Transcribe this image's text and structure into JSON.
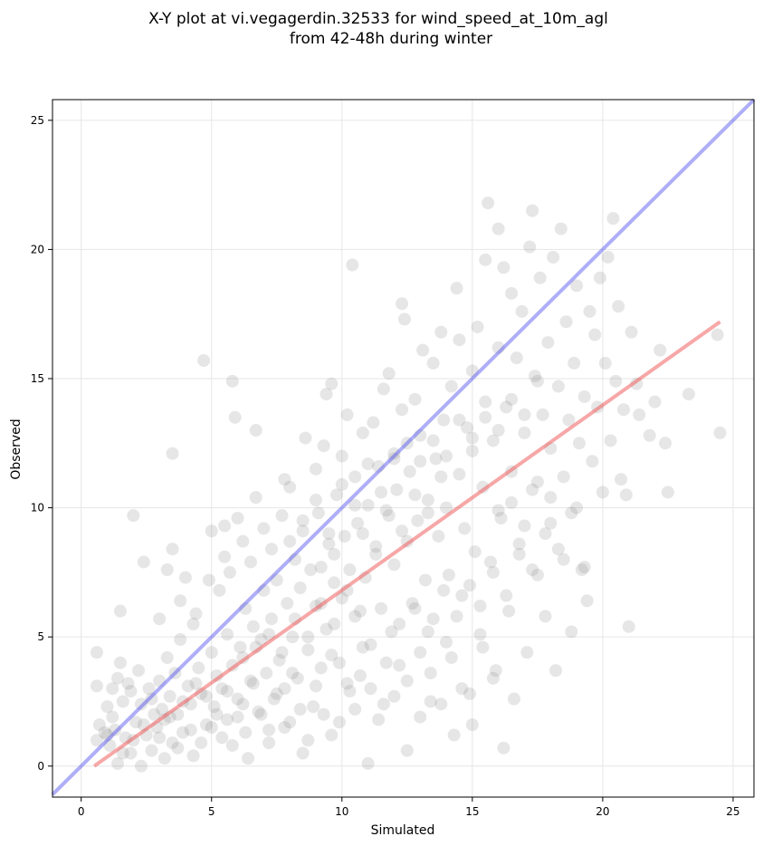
{
  "chart_data": {
    "type": "scatter",
    "title_lines": [
      "X-Y plot at vi.vegagerdin.32533 for wind_speed_at_10m_agl",
      "from 42-48h during winter"
    ],
    "xlabel": "Simulated",
    "ylabel": "Observed",
    "xlim": [
      -1.1,
      25.8
    ],
    "ylim": [
      -1.2,
      25.8
    ],
    "x_ticks": [
      0,
      5,
      10,
      15,
      20,
      25
    ],
    "y_ticks": [
      0,
      5,
      10,
      15,
      20,
      25
    ],
    "grid": true,
    "point_color": "#808080",
    "identity_line": {
      "x": [
        -1.1,
        25.8
      ],
      "y": [
        -1.1,
        25.8
      ],
      "color": "#4c4cf0"
    },
    "fit_line": {
      "x": [
        0.5,
        24.5
      ],
      "y": [
        0.0,
        17.2
      ],
      "color": "#f05050"
    },
    "points": [
      [
        0.6,
        1.0
      ],
      [
        0.6,
        4.4
      ],
      [
        0.6,
        3.1
      ],
      [
        0.7,
        1.6
      ],
      [
        0.9,
        1.3
      ],
      [
        1.0,
        2.3
      ],
      [
        1.1,
        0.8
      ],
      [
        1.2,
        1.9
      ],
      [
        1.2,
        3.0
      ],
      [
        1.3,
        1.4
      ],
      [
        1.4,
        0.1
      ],
      [
        1.4,
        3.4
      ],
      [
        1.5,
        4.0
      ],
      [
        1.5,
        6.0
      ],
      [
        1.6,
        2.5
      ],
      [
        1.7,
        1.1
      ],
      [
        1.8,
        3.2
      ],
      [
        1.9,
        0.5
      ],
      [
        1.9,
        2.9
      ],
      [
        2.0,
        9.7
      ],
      [
        2.1,
        1.7
      ],
      [
        2.2,
        3.7
      ],
      [
        2.3,
        0.0
      ],
      [
        2.3,
        2.4
      ],
      [
        2.4,
        7.9
      ],
      [
        2.5,
        1.2
      ],
      [
        2.6,
        3.0
      ],
      [
        2.7,
        0.6
      ],
      [
        2.8,
        2.0
      ],
      [
        2.9,
        1.5
      ],
      [
        3.0,
        5.7
      ],
      [
        3.0,
        3.3
      ],
      [
        3.1,
        2.2
      ],
      [
        3.2,
        1.8
      ],
      [
        3.3,
        4.2
      ],
      [
        3.3,
        7.6
      ],
      [
        3.4,
        2.7
      ],
      [
        3.5,
        0.9
      ],
      [
        3.5,
        12.1
      ],
      [
        3.5,
        8.4
      ],
      [
        3.6,
        3.6
      ],
      [
        3.7,
        2.0
      ],
      [
        3.8,
        6.4
      ],
      [
        3.8,
        4.9
      ],
      [
        3.9,
        1.3
      ],
      [
        4.0,
        7.3
      ],
      [
        4.1,
        3.1
      ],
      [
        4.2,
        2.4
      ],
      [
        4.3,
        5.5
      ],
      [
        4.3,
        0.4
      ],
      [
        4.4,
        5.9
      ],
      [
        4.5,
        3.8
      ],
      [
        4.6,
        2.8
      ],
      [
        4.7,
        15.7
      ],
      [
        4.8,
        1.6
      ],
      [
        4.9,
        7.2
      ],
      [
        5.0,
        4.4
      ],
      [
        5.0,
        9.1
      ],
      [
        5.1,
        2.3
      ],
      [
        5.2,
        3.5
      ],
      [
        5.3,
        6.8
      ],
      [
        5.4,
        1.1
      ],
      [
        5.5,
        9.3
      ],
      [
        5.5,
        8.1
      ],
      [
        5.6,
        2.9
      ],
      [
        5.6,
        5.1
      ],
      [
        5.7,
        7.5
      ],
      [
        5.8,
        3.9
      ],
      [
        5.8,
        14.9
      ],
      [
        5.9,
        13.5
      ],
      [
        6.0,
        1.9
      ],
      [
        6.0,
        9.6
      ],
      [
        6.1,
        4.6
      ],
      [
        6.2,
        2.4
      ],
      [
        6.2,
        8.7
      ],
      [
        6.3,
        6.1
      ],
      [
        6.4,
        0.3
      ],
      [
        6.5,
        3.3
      ],
      [
        6.5,
        7.9
      ],
      [
        6.6,
        5.4
      ],
      [
        6.7,
        13.0
      ],
      [
        6.7,
        10.4
      ],
      [
        6.8,
        2.1
      ],
      [
        6.9,
        4.9
      ],
      [
        7.0,
        9.2
      ],
      [
        7.0,
        6.8
      ],
      [
        7.1,
        3.6
      ],
      [
        7.2,
        1.4
      ],
      [
        7.3,
        8.4
      ],
      [
        7.3,
        5.7
      ],
      [
        7.4,
        2.6
      ],
      [
        7.5,
        7.2
      ],
      [
        7.6,
        4.1
      ],
      [
        7.7,
        9.7
      ],
      [
        7.8,
        11.1
      ],
      [
        7.8,
        3.0
      ],
      [
        7.9,
        6.3
      ],
      [
        8.0,
        1.7
      ],
      [
        8.0,
        10.8
      ],
      [
        8.1,
        5.0
      ],
      [
        8.2,
        8.0
      ],
      [
        8.3,
        3.4
      ],
      [
        8.4,
        6.9
      ],
      [
        8.5,
        9.1
      ],
      [
        8.5,
        0.5
      ],
      [
        8.6,
        12.7
      ],
      [
        8.7,
        4.5
      ],
      [
        8.8,
        7.6
      ],
      [
        8.9,
        2.3
      ],
      [
        9.0,
        11.5
      ],
      [
        9.0,
        6.2
      ],
      [
        9.1,
        9.8
      ],
      [
        9.2,
        3.8
      ],
      [
        9.3,
        12.4
      ],
      [
        9.4,
        14.4
      ],
      [
        9.4,
        5.3
      ],
      [
        9.5,
        8.6
      ],
      [
        9.6,
        1.2
      ],
      [
        9.6,
        14.8
      ],
      [
        9.7,
        7.1
      ],
      [
        9.8,
        10.5
      ],
      [
        9.9,
        4.0
      ],
      [
        10.0,
        12.0
      ],
      [
        10.0,
        6.5
      ],
      [
        10.1,
        8.9
      ],
      [
        10.2,
        13.6
      ],
      [
        10.3,
        2.9
      ],
      [
        10.4,
        19.4
      ],
      [
        10.5,
        11.2
      ],
      [
        10.5,
        5.8
      ],
      [
        10.6,
        9.4
      ],
      [
        10.7,
        3.5
      ],
      [
        10.8,
        12.9
      ],
      [
        10.9,
        7.3
      ],
      [
        11.0,
        10.1
      ],
      [
        11.0,
        0.1
      ],
      [
        11.1,
        4.7
      ],
      [
        11.2,
        13.3
      ],
      [
        11.3,
        8.2
      ],
      [
        11.4,
        11.6
      ],
      [
        11.5,
        6.1
      ],
      [
        11.6,
        14.6
      ],
      [
        11.6,
        2.4
      ],
      [
        11.7,
        9.9
      ],
      [
        11.8,
        15.2
      ],
      [
        11.9,
        5.2
      ],
      [
        12.0,
        12.1
      ],
      [
        12.0,
        7.8
      ],
      [
        12.1,
        10.7
      ],
      [
        12.2,
        3.9
      ],
      [
        12.3,
        17.9
      ],
      [
        12.3,
        13.8
      ],
      [
        12.4,
        17.3
      ],
      [
        12.5,
        8.7
      ],
      [
        12.5,
        0.6
      ],
      [
        12.6,
        11.4
      ],
      [
        12.7,
        6.3
      ],
      [
        12.8,
        14.2
      ],
      [
        12.9,
        9.5
      ],
      [
        13.0,
        4.4
      ],
      [
        13.0,
        12.8
      ],
      [
        13.1,
        16.1
      ],
      [
        13.2,
        7.2
      ],
      [
        13.3,
        10.3
      ],
      [
        13.4,
        2.5
      ],
      [
        13.5,
        15.6
      ],
      [
        13.5,
        5.7
      ],
      [
        13.6,
        11.9
      ],
      [
        13.7,
        8.9
      ],
      [
        13.8,
        16.8
      ],
      [
        13.9,
        13.4
      ],
      [
        14.0,
        4.8
      ],
      [
        14.0,
        10.0
      ],
      [
        14.1,
        7.4
      ],
      [
        14.2,
        14.7
      ],
      [
        14.3,
        1.2
      ],
      [
        14.4,
        18.5
      ],
      [
        14.5,
        11.3
      ],
      [
        14.5,
        16.5
      ],
      [
        14.6,
        6.6
      ],
      [
        14.7,
        9.2
      ],
      [
        14.8,
        13.1
      ],
      [
        14.9,
        2.8
      ],
      [
        15.0,
        15.3
      ],
      [
        15.0,
        12.2
      ],
      [
        15.1,
        8.3
      ],
      [
        15.2,
        17.0
      ],
      [
        15.3,
        5.1
      ],
      [
        15.4,
        10.8
      ],
      [
        15.5,
        19.6
      ],
      [
        15.5,
        14.1
      ],
      [
        15.6,
        21.8
      ],
      [
        15.7,
        7.9
      ],
      [
        15.8,
        12.6
      ],
      [
        15.9,
        3.7
      ],
      [
        16.0,
        20.8
      ],
      [
        16.0,
        16.2
      ],
      [
        16.1,
        9.6
      ],
      [
        16.2,
        19.3
      ],
      [
        16.3,
        13.9
      ],
      [
        16.4,
        6.0
      ],
      [
        16.5,
        18.3
      ],
      [
        16.5,
        11.4
      ],
      [
        16.6,
        2.6
      ],
      [
        16.7,
        15.8
      ],
      [
        16.8,
        8.6
      ],
      [
        16.9,
        17.6
      ],
      [
        17.0,
        12.9
      ],
      [
        17.1,
        4.4
      ],
      [
        17.2,
        20.1
      ],
      [
        17.3,
        21.5
      ],
      [
        17.3,
        10.7
      ],
      [
        17.4,
        15.1
      ],
      [
        17.5,
        7.4
      ],
      [
        17.6,
        18.9
      ],
      [
        17.7,
        13.6
      ],
      [
        17.8,
        5.8
      ],
      [
        17.9,
        16.4
      ],
      [
        18.0,
        9.4
      ],
      [
        18.0,
        12.3
      ],
      [
        18.1,
        19.7
      ],
      [
        18.2,
        3.7
      ],
      [
        18.3,
        14.7
      ],
      [
        18.4,
        20.8
      ],
      [
        18.5,
        11.2
      ],
      [
        18.5,
        8.0
      ],
      [
        18.6,
        17.2
      ],
      [
        18.7,
        13.4
      ],
      [
        18.8,
        5.2
      ],
      [
        18.9,
        15.6
      ],
      [
        19.0,
        10.0
      ],
      [
        19.0,
        18.6
      ],
      [
        19.1,
        12.5
      ],
      [
        19.2,
        7.6
      ],
      [
        19.3,
        14.3
      ],
      [
        19.4,
        6.4
      ],
      [
        19.5,
        17.6
      ],
      [
        19.6,
        11.8
      ],
      [
        19.7,
        16.7
      ],
      [
        19.8,
        13.9
      ],
      [
        19.9,
        18.9
      ],
      [
        20.0,
        10.6
      ],
      [
        20.1,
        15.6
      ],
      [
        20.2,
        19.7
      ],
      [
        20.3,
        12.6
      ],
      [
        20.4,
        21.2
      ],
      [
        20.5,
        14.9
      ],
      [
        20.6,
        17.8
      ],
      [
        20.7,
        11.1
      ],
      [
        20.8,
        13.8
      ],
      [
        20.9,
        10.5
      ],
      [
        21.0,
        5.4
      ],
      [
        21.1,
        16.8
      ],
      [
        21.3,
        14.8
      ],
      [
        21.4,
        13.6
      ],
      [
        21.8,
        12.8
      ],
      [
        22.0,
        14.1
      ],
      [
        22.2,
        16.1
      ],
      [
        22.4,
        12.5
      ],
      [
        22.5,
        10.6
      ],
      [
        23.3,
        14.4
      ],
      [
        24.4,
        16.7
      ],
      [
        24.5,
        12.9
      ],
      [
        1.0,
        1.2
      ],
      [
        1.6,
        0.5
      ],
      [
        2.0,
        1.0
      ],
      [
        2.4,
        1.6
      ],
      [
        2.7,
        2.6
      ],
      [
        3.0,
        1.1
      ],
      [
        3.2,
        0.3
      ],
      [
        3.4,
        1.9
      ],
      [
        3.7,
        0.7
      ],
      [
        3.9,
        2.5
      ],
      [
        4.2,
        1.4
      ],
      [
        4.4,
        3.2
      ],
      [
        4.6,
        0.9
      ],
      [
        4.8,
        2.7
      ],
      [
        5.0,
        1.5
      ],
      [
        5.2,
        2.0
      ],
      [
        5.4,
        3.0
      ],
      [
        5.6,
        1.8
      ],
      [
        5.8,
        0.8
      ],
      [
        6.0,
        2.6
      ],
      [
        6.3,
        1.3
      ],
      [
        6.6,
        3.2
      ],
      [
        6.9,
        2.0
      ],
      [
        7.2,
        0.9
      ],
      [
        7.5,
        2.8
      ],
      [
        7.8,
        1.5
      ],
      [
        8.1,
        3.6
      ],
      [
        8.4,
        2.2
      ],
      [
        8.7,
        1.0
      ],
      [
        9.0,
        3.1
      ],
      [
        9.3,
        2.0
      ],
      [
        9.6,
        4.3
      ],
      [
        9.9,
        1.7
      ],
      [
        10.2,
        3.2
      ],
      [
        10.5,
        2.2
      ],
      [
        10.8,
        4.6
      ],
      [
        11.1,
        3.0
      ],
      [
        11.4,
        1.8
      ],
      [
        11.7,
        4.0
      ],
      [
        12.0,
        2.7
      ],
      [
        12.5,
        3.3
      ],
      [
        13.0,
        1.9
      ],
      [
        13.4,
        3.6
      ],
      [
        13.8,
        2.4
      ],
      [
        14.2,
        4.2
      ],
      [
        14.6,
        3.0
      ],
      [
        15.0,
        1.6
      ],
      [
        15.4,
        4.6
      ],
      [
        15.8,
        3.4
      ],
      [
        16.2,
        0.7
      ],
      [
        12.2,
        5.5
      ],
      [
        12.8,
        6.1
      ],
      [
        13.3,
        5.2
      ],
      [
        13.9,
        6.8
      ],
      [
        14.4,
        5.8
      ],
      [
        14.9,
        7.0
      ],
      [
        15.3,
        6.2
      ],
      [
        15.8,
        7.5
      ],
      [
        16.3,
        6.6
      ],
      [
        16.8,
        8.2
      ],
      [
        17.3,
        7.6
      ],
      [
        17.8,
        9.0
      ],
      [
        18.3,
        8.4
      ],
      [
        18.8,
        9.8
      ],
      [
        19.3,
        7.7
      ],
      [
        16.0,
        9.9
      ],
      [
        16.5,
        10.2
      ],
      [
        17.0,
        9.3
      ],
      [
        17.5,
        11.0
      ],
      [
        18.0,
        10.4
      ],
      [
        9.2,
        7.7
      ],
      [
        9.7,
        8.2
      ],
      [
        10.3,
        7.6
      ],
      [
        10.8,
        9.0
      ],
      [
        11.3,
        8.5
      ],
      [
        11.8,
        9.7
      ],
      [
        12.3,
        9.1
      ],
      [
        12.8,
        10.5
      ],
      [
        13.3,
        9.8
      ],
      [
        13.8,
        11.2
      ],
      [
        6.2,
        4.2
      ],
      [
        6.7,
        4.6
      ],
      [
        7.2,
        5.1
      ],
      [
        7.7,
        4.4
      ],
      [
        8.2,
        5.7
      ],
      [
        8.7,
        5.0
      ],
      [
        9.2,
        6.3
      ],
      [
        9.7,
        5.5
      ],
      [
        10.2,
        6.8
      ],
      [
        10.7,
        6.0
      ],
      [
        8.0,
        8.7
      ],
      [
        8.5,
        9.5
      ],
      [
        9.0,
        10.3
      ],
      [
        9.5,
        9.0
      ],
      [
        10.0,
        10.9
      ],
      [
        10.5,
        10.1
      ],
      [
        11.0,
        11.7
      ],
      [
        11.5,
        10.6
      ],
      [
        12.0,
        11.9
      ],
      [
        12.5,
        12.5
      ],
      [
        13.0,
        11.8
      ],
      [
        13.5,
        12.6
      ],
      [
        14.0,
        12.0
      ],
      [
        14.5,
        13.4
      ],
      [
        15.0,
        12.7
      ],
      [
        15.5,
        13.5
      ],
      [
        16.0,
        13.0
      ],
      [
        16.5,
        14.2
      ],
      [
        17.0,
        13.6
      ],
      [
        17.5,
        14.9
      ]
    ]
  }
}
